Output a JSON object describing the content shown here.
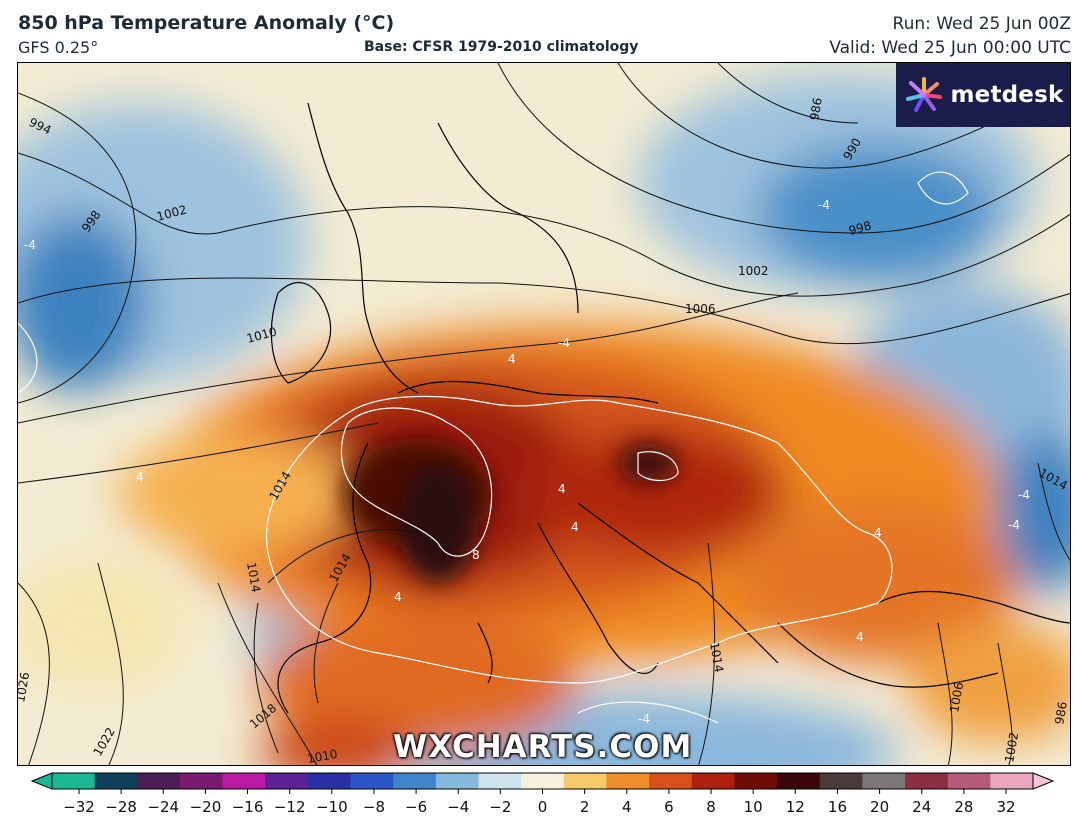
{
  "header": {
    "title": "850 hPa Temperature Anomaly (°C)",
    "model": "GFS 0.25°",
    "base": "Base: CFSR 1979-2010 climatology",
    "run": "Run: Wed 25 Jun 00Z",
    "valid": "Valid: Wed 25 Jun 00:00 UTC"
  },
  "logo": {
    "text": "metdesk",
    "icon": "metdesk-flower-icon"
  },
  "watermark": "WXCHARTS.COM",
  "map": {
    "isobar_labels": [
      "994",
      "998",
      "1002",
      "1006",
      "1010",
      "1014",
      "1018",
      "1022",
      "1026",
      "990",
      "986"
    ],
    "anomaly_labels": [
      "-4",
      "4",
      "8"
    ],
    "colors": {
      "extreme_warm": "#2a0a08",
      "very_warm": "#6e1208",
      "warm": "#c63a10",
      "mild": "#f08a22",
      "slight": "#f6c25a",
      "neutral": "#f3ecd3",
      "cool": "#aac8e0",
      "cold": "#3c82c0"
    }
  },
  "colorbar": {
    "ticks": [
      "−32",
      "−28",
      "−24",
      "−20",
      "−16",
      "−12",
      "−10",
      "−8",
      "−6",
      "−4",
      "−2",
      "0",
      "2",
      "4",
      "6",
      "8",
      "10",
      "12",
      "16",
      "20",
      "24",
      "28",
      "32"
    ],
    "colors": [
      "#1bb795",
      "#103f5e",
      "#4a1d55",
      "#7a1a70",
      "#b81aa6",
      "#5d2196",
      "#2b2fa6",
      "#2a56c8",
      "#3e86c9",
      "#86b9de",
      "#cfe3ef",
      "#f6f1dc",
      "#f5c86a",
      "#ee8c2a",
      "#d8511a",
      "#b0200e",
      "#6e0d08",
      "#3a0707",
      "#4a3a3a",
      "#7d7676",
      "#8a2e40",
      "#b85b78",
      "#e8a6bf"
    ]
  }
}
